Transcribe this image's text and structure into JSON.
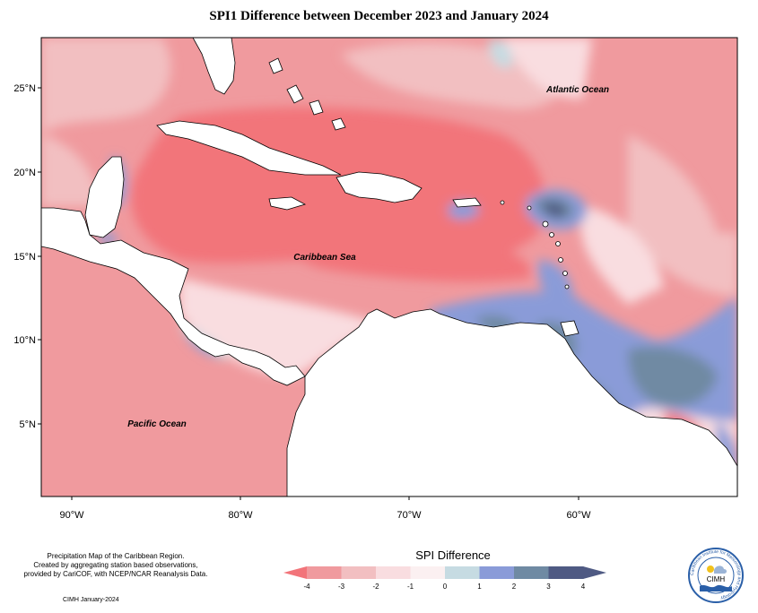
{
  "title": "SPI1 Difference between December 2023 and January 2024",
  "map": {
    "labels": {
      "atlantic": "Atlantic Ocean",
      "caribbean": "Caribbean Sea",
      "pacific": "Pacific Ocean"
    },
    "lat_ticks": [
      "25°N",
      "20°N",
      "15°N",
      "10°N",
      "5°N"
    ],
    "lon_ticks": [
      "90°W",
      "80°W",
      "70°W",
      "60°W"
    ],
    "extent": {
      "lon": [
        -92,
        -50
      ],
      "lat": [
        1.5,
        28.5
      ]
    }
  },
  "legend": {
    "title": "SPI Difference",
    "ticks": [
      "-4",
      "-3",
      "-2",
      "-1",
      "0",
      "1",
      "2",
      "3",
      "4"
    ],
    "colors": [
      "#f2747a",
      "#f09a9e",
      "#f2bfc1",
      "#f9dde0",
      "#fbf0f1",
      "#c6dbe2",
      "#8a9bd8",
      "#6f8aa3",
      "#4f5a83"
    ]
  },
  "credits": {
    "line1": "Precipitation Map of the Caribbean Region.",
    "line2": "Created by aggregating station based observations,",
    "line3": "provided by CariCOF, with NCEP/NCAR Reanalysis Data.",
    "date": "CIMH January-2024"
  },
  "logo": {
    "text": "CIMH",
    "ring_text": "Caribbean Institute for Meteorology and Hydrology"
  }
}
